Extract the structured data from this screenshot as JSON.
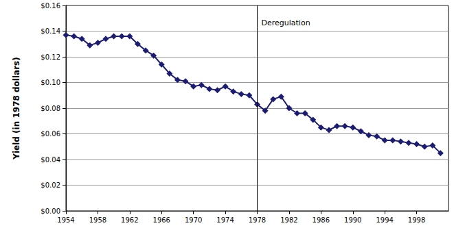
{
  "chart_data": {
    "type": "line",
    "y_label": "Yield (in 1978 dollars)",
    "x": [
      1954,
      1955,
      1956,
      1957,
      1958,
      1959,
      1960,
      1961,
      1962,
      1963,
      1964,
      1965,
      1966,
      1967,
      1968,
      1969,
      1970,
      1971,
      1972,
      1973,
      1974,
      1975,
      1976,
      1977,
      1978,
      1979,
      1980,
      1981,
      1982,
      1983,
      1984,
      1985,
      1986,
      1987,
      1988,
      1989,
      1990,
      1991,
      1992,
      1993,
      1994,
      1995,
      1996,
      1997,
      1998,
      1999,
      2000,
      2001
    ],
    "values": [
      0.137,
      0.136,
      0.134,
      0.129,
      0.131,
      0.134,
      0.136,
      0.136,
      0.136,
      0.13,
      0.125,
      0.121,
      0.114,
      0.107,
      0.102,
      0.101,
      0.097,
      0.098,
      0.095,
      0.094,
      0.097,
      0.093,
      0.091,
      0.09,
      0.083,
      0.078,
      0.087,
      0.089,
      0.08,
      0.076,
      0.076,
      0.071,
      0.065,
      0.063,
      0.066,
      0.066,
      0.065,
      0.062,
      0.059,
      0.058,
      0.055,
      0.055,
      0.054,
      0.053,
      0.052,
      0.05,
      0.051,
      0.045
    ],
    "color": "#1c1c73",
    "marker": "diamond",
    "xlim": [
      1954,
      2002
    ],
    "xticks": [
      1954,
      1958,
      1962,
      1966,
      1970,
      1974,
      1978,
      1982,
      1986,
      1990,
      1994,
      1998
    ],
    "ylim": [
      0,
      0.16
    ],
    "yticks": [
      {
        "value": 0,
        "label": "$0.00"
      },
      {
        "value": 0.02,
        "label": "$0.02"
      },
      {
        "value": 0.04,
        "label": "$0.04"
      },
      {
        "value": 0.06,
        "label": "$0.06"
      },
      {
        "value": 0.08,
        "label": "$0.08"
      },
      {
        "value": 0.1,
        "label": "$0.10"
      },
      {
        "value": 0.12,
        "label": "$0.12"
      },
      {
        "value": 0.14,
        "label": "$0.14"
      },
      {
        "value": 0.16,
        "label": "$0.16"
      }
    ],
    "grid": true,
    "annotations": [
      {
        "x": 1978,
        "text": "Deregulation"
      }
    ]
  }
}
